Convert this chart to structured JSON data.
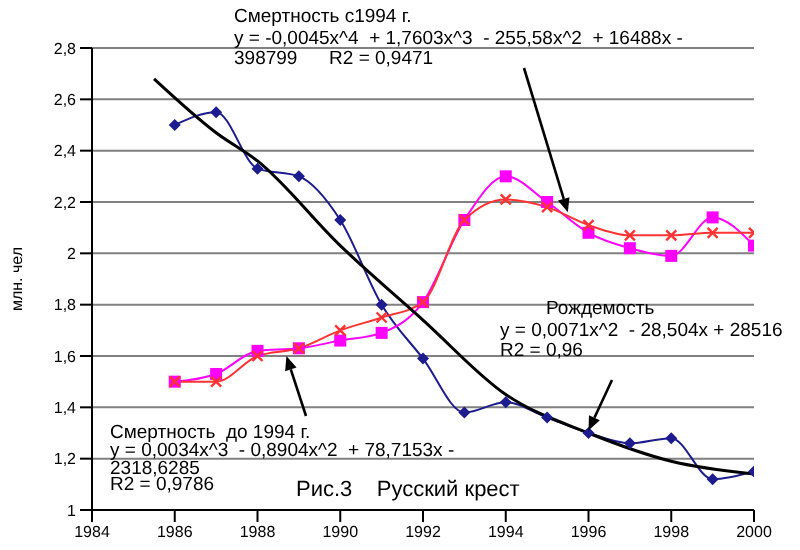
{
  "chart_data": {
    "type": "line",
    "ylabel": "млн. чел",
    "xlim": [
      1984,
      2000
    ],
    "xticks": [
      1984,
      1986,
      1988,
      1990,
      1992,
      1994,
      1996,
      1998,
      2000
    ],
    "ylim": [
      1,
      2.8
    ],
    "yticks": [
      {
        "value": 1,
        "label": "1"
      },
      {
        "value": 1.2,
        "label": "1,2"
      },
      {
        "value": 1.4,
        "label": "1,4"
      },
      {
        "value": 1.6,
        "label": "1,6"
      },
      {
        "value": 1.8,
        "label": "1,8"
      },
      {
        "value": 2,
        "label": "2"
      },
      {
        "value": 2.2,
        "label": "2,2"
      },
      {
        "value": 2.4,
        "label": "2,4"
      },
      {
        "value": 2.6,
        "label": "2,6"
      },
      {
        "value": 2.8,
        "label": "2,8"
      }
    ],
    "grid": "y",
    "legend": false,
    "x": [
      1986,
      1987,
      1988,
      1989,
      1990,
      1991,
      1992,
      1993,
      1994,
      1995,
      1996,
      1997,
      1998,
      1999,
      2000
    ],
    "series": [
      {
        "color": "#1c1c8f",
        "marker": "diamond",
        "values": [
          2.5,
          2.55,
          2.33,
          2.3,
          2.13,
          1.8,
          1.59,
          1.38,
          1.42,
          1.36,
          1.3,
          1.26,
          1.28,
          1.12,
          1.15
        ]
      },
      {
        "color": "#ff00ff",
        "marker": "square",
        "values": [
          1.5,
          1.53,
          1.62,
          1.63,
          1.66,
          1.69,
          1.81,
          2.13,
          2.3,
          2.2,
          2.08,
          2.02,
          1.99,
          2.14,
          2.03
        ]
      },
      {
        "color": "#ff3333",
        "marker": "cross",
        "values": [
          1.5,
          1.5,
          1.6,
          1.63,
          1.7,
          1.75,
          1.81,
          2.13,
          2.21,
          2.18,
          2.11,
          2.07,
          2.07,
          2.08,
          2.08
        ]
      },
      {
        "color": "#000000",
        "marker": "none",
        "x": [
          1985.5,
          1987,
          1988,
          1990,
          1992,
          1994,
          1996,
          1998,
          2000
        ],
        "values": [
          2.68,
          2.47,
          2.36,
          2.03,
          1.74,
          1.45,
          1.3,
          1.19,
          1.14
        ]
      }
    ],
    "annotations": [
      {
        "text": "Смертность с1994 г.\ny = -0,0045x^4  + 1,7603x^3  - 255,58x^2  + 16488x -\n398799      R2 = 0,9471",
        "x": 1995.5,
        "y": 2.16
      },
      {
        "text": "Рождемость\ny = 0,0071x^2  - 28,504x + 28516\nR2 = 0,96",
        "x": 1996,
        "y": 1.31
      },
      {
        "text": "Смертность  до 1994 г.\ny = 0,0034x^3  - 0,8904x^2  + 78,7153x -\n2318,6285\nR2 = 0,9786",
        "x": 1988.7,
        "y": 1.6
      },
      "Рис.3    Русский крест"
    ]
  }
}
